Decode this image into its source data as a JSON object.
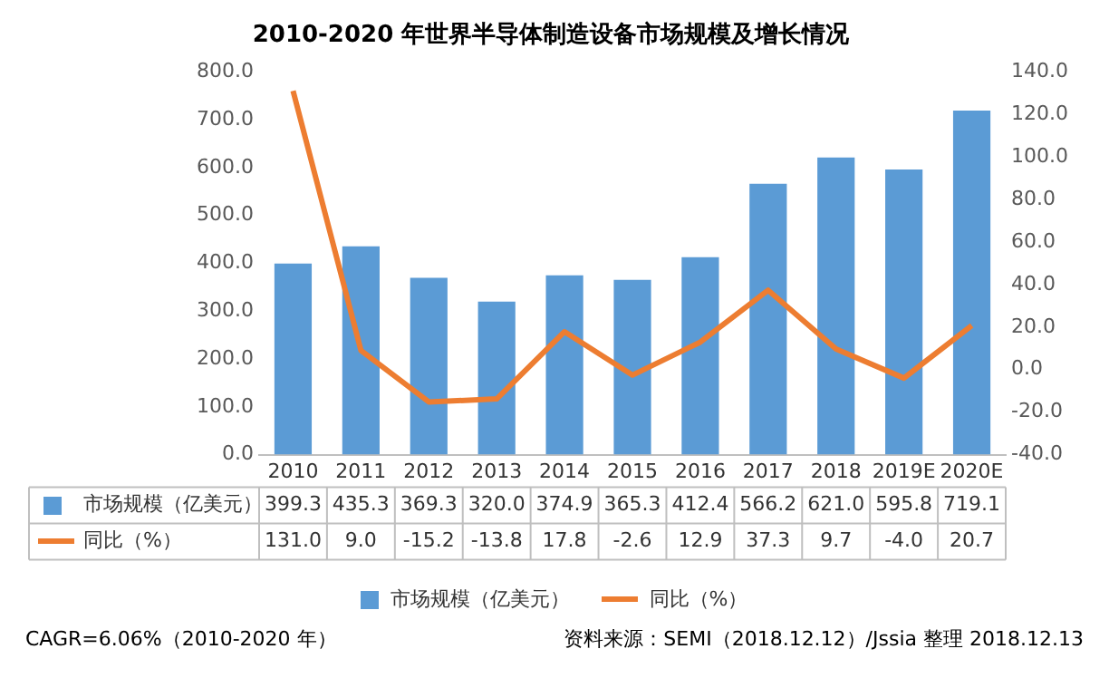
{
  "chart_data": {
    "type": "bar",
    "title": "2010-2020 年世界半导体制造设备市场规模及增长情况",
    "categories": [
      "2010",
      "2011",
      "2012",
      "2013",
      "2014",
      "2015",
      "2016",
      "2017",
      "2018",
      "2019E",
      "2020E"
    ],
    "series": [
      {
        "name": "市场规模（亿美元）",
        "type": "bar",
        "color": "#5b9bd5",
        "values": [
          399.3,
          435.3,
          369.3,
          320.0,
          374.9,
          365.3,
          412.4,
          566.2,
          621.0,
          595.8,
          719.1
        ],
        "value_labels": [
          "399.3",
          "435.3",
          "369.3",
          "320.0",
          "374.9",
          "365.3",
          "412.4",
          "566.2",
          "621.0",
          "595.8",
          "719.1"
        ]
      },
      {
        "name": "同比（%）",
        "type": "line",
        "axis": "y2",
        "color": "#ed7d31",
        "values": [
          131.0,
          9.0,
          -15.2,
          -13.8,
          17.8,
          -2.6,
          12.9,
          37.3,
          9.7,
          -4.0,
          20.7
        ],
        "value_labels": [
          "131.0",
          "9.0",
          "-15.2",
          "-13.8",
          "17.8",
          "-2.6",
          "12.9",
          "37.3",
          "9.7",
          "-4.0",
          "20.7"
        ]
      }
    ],
    "ylim": [
      0,
      800
    ],
    "yticks": [
      {
        "value": 0,
        "label": "0.0"
      },
      {
        "value": 100,
        "label": "100.0"
      },
      {
        "value": 200,
        "label": "200.0"
      },
      {
        "value": 300,
        "label": "300.0"
      },
      {
        "value": 400,
        "label": "400.0"
      },
      {
        "value": 500,
        "label": "500.0"
      },
      {
        "value": 600,
        "label": "600.0"
      },
      {
        "value": 700,
        "label": "700.0"
      },
      {
        "value": 800,
        "label": "800.0"
      }
    ],
    "y2lim": [
      -40,
      140
    ],
    "y2ticks": [
      {
        "value": -40,
        "label": "-40.0"
      },
      {
        "value": -20,
        "label": "-20.0"
      },
      {
        "value": 0,
        "label": "0.0"
      },
      {
        "value": 20,
        "label": "20.0"
      },
      {
        "value": 40,
        "label": "40.0"
      },
      {
        "value": 60,
        "label": "60.0"
      },
      {
        "value": 80,
        "label": "80.0"
      },
      {
        "value": 100,
        "label": "100.0"
      },
      {
        "value": 120,
        "label": "120.0"
      },
      {
        "value": 140,
        "label": "140.0"
      }
    ],
    "grid": false,
    "legend": "bottom",
    "marker": "none",
    "annotations": [
      "CAGR=6.06%（2010-2020 年）",
      "资料来源：SEMI（2018.12.12）/Jssia 整理 2018.12.13"
    ]
  }
}
